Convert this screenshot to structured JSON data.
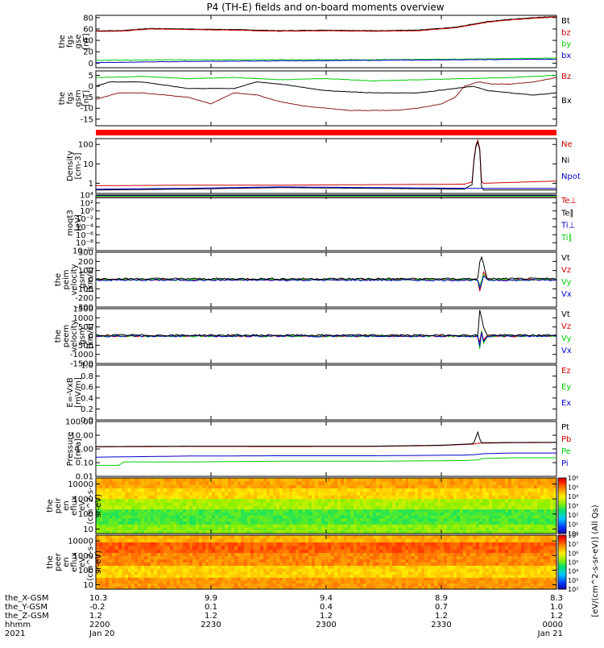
{
  "title": "P4 (TH-E) fields and on-board moments overview",
  "chart_data": [
    {
      "type": "line",
      "ylabel": [
        "the",
        "fgs",
        "gse",
        "[nT]"
      ],
      "ticks": [
        "80",
        "60",
        "40",
        "20",
        "0"
      ],
      "ylim": [
        -8,
        84
      ],
      "legend": [
        {
          "label": "Bt",
          "color": "#000000"
        },
        {
          "label": "bz",
          "color": "#cc0000"
        },
        {
          "label": "by",
          "color": "#00cc00"
        },
        {
          "label": "bx",
          "color": "#0000cc"
        }
      ],
      "series": [
        {
          "name": "Bt",
          "color": "#000000",
          "x": [
            0,
            0.05,
            0.12,
            0.2,
            0.3,
            0.4,
            0.5,
            0.6,
            0.7,
            0.78,
            0.85,
            0.9,
            0.95,
            1
          ],
          "values": [
            57,
            57,
            61,
            60,
            59,
            57,
            58,
            57,
            58,
            63,
            73,
            77,
            80,
            82
          ]
        },
        {
          "name": "bz",
          "color": "#cc0000",
          "x": [
            0,
            0.05,
            0.12,
            0.2,
            0.3,
            0.4,
            0.5,
            0.6,
            0.7,
            0.78,
            0.85,
            0.9,
            0.95,
            1
          ],
          "values": [
            56,
            56,
            60,
            59,
            58,
            56,
            57,
            56,
            57,
            62,
            72,
            76,
            79,
            81
          ]
        },
        {
          "name": "by",
          "color": "#00cc00",
          "x": [
            0,
            0.2,
            0.4,
            0.6,
            0.8,
            1
          ],
          "values": [
            5,
            6,
            6,
            6,
            7,
            9
          ]
        },
        {
          "name": "bx",
          "color": "#0000cc",
          "x": [
            0,
            0.2,
            0.4,
            0.6,
            0.8,
            1
          ],
          "values": [
            1,
            3,
            4,
            5,
            6,
            7
          ]
        }
      ]
    },
    {
      "type": "line",
      "ylabel": [
        "the",
        "fgs",
        "gsm",
        "[nT]"
      ],
      "ticks": [
        "5",
        "0",
        "-5",
        "-10",
        "-15"
      ],
      "ylim": [
        -18,
        7
      ],
      "legend": [
        {
          "label": "Bz",
          "color": "#cc0000"
        },
        {
          "label": "Bx",
          "color": "#000000"
        }
      ],
      "series": [
        {
          "name": "By",
          "color": "#00cc00",
          "x": [
            0,
            0.1,
            0.2,
            0.3,
            0.4,
            0.5,
            0.6,
            0.7,
            0.8,
            0.9,
            1
          ],
          "values": [
            4,
            4.5,
            3.5,
            4,
            3,
            3.5,
            2.5,
            3,
            3.5,
            4,
            5
          ]
        },
        {
          "name": "Bx",
          "color": "#000000",
          "x": [
            0,
            0.03,
            0.1,
            0.2,
            0.3,
            0.35,
            0.4,
            0.5,
            0.6,
            0.7,
            0.78,
            0.82,
            0.85,
            0.9,
            0.95,
            1
          ],
          "values": [
            0,
            2,
            2,
            -1,
            -1,
            2,
            1,
            -2,
            -3,
            -3,
            -1,
            0,
            -2,
            -3,
            -4,
            -3
          ]
        },
        {
          "name": "Bz",
          "color": "#8b1a1a",
          "x": [
            0,
            0.05,
            0.1,
            0.2,
            0.25,
            0.3,
            0.35,
            0.4,
            0.45,
            0.5,
            0.55,
            0.6,
            0.65,
            0.7,
            0.75,
            0.78,
            0.8,
            0.83,
            0.86,
            0.9,
            0.95,
            1
          ],
          "values": [
            -6,
            -3,
            -3,
            -5,
            -8,
            -3,
            -4,
            -7,
            -9,
            -10,
            -11,
            -11,
            -11,
            -10,
            -8,
            -5,
            0,
            2,
            1,
            1,
            2,
            4
          ]
        }
      ]
    },
    {
      "type": "line",
      "ylabel": [
        "Density",
        "[cm-3]"
      ],
      "ticks": [
        "100",
        "10",
        "1"
      ],
      "yscale": "log",
      "ylim": [
        0.3,
        200
      ],
      "legend": [
        {
          "label": "Ne",
          "color": "#cc0000"
        },
        {
          "label": "Ni",
          "color": "#000000"
        },
        {
          "label": "Npot",
          "color": "#0000cc"
        }
      ],
      "series": [
        {
          "name": "Ne",
          "color": "#cc0000",
          "x": [
            0,
            0.2,
            0.4,
            0.6,
            0.8,
            0.82,
            0.83,
            0.835,
            0.84,
            0.9,
            1
          ],
          "values": [
            0.75,
            0.8,
            0.8,
            0.85,
            0.9,
            1.2,
            180,
            1.5,
            1.0,
            1.1,
            1.3
          ]
        },
        {
          "name": "Ni",
          "color": "#000000",
          "x": [
            0,
            0.2,
            0.4,
            0.6,
            0.8,
            0.82,
            0.83,
            0.835,
            0.84,
            0.9,
            1
          ],
          "values": [
            0.45,
            0.5,
            0.6,
            0.55,
            0.5,
            0.9,
            150,
            0.8,
            0.45,
            0.45,
            0.45
          ]
        },
        {
          "name": "Npot",
          "color": "#0000cc",
          "x": [
            0,
            0.2,
            0.4,
            0.6,
            0.8,
            1
          ],
          "values": [
            0.5,
            0.55,
            0.65,
            0.6,
            0.55,
            0.55
          ]
        }
      ]
    },
    {
      "type": "line",
      "ylabel": [
        "moqt3",
        "[eV]"
      ],
      "ticks": [
        "10⁴",
        "10²",
        "10⁰",
        "10⁻²",
        "10⁻⁴",
        "10⁻⁶",
        "10⁻⁸",
        "10⁻¹⁰"
      ],
      "yscale": "log",
      "ylim": [
        -10,
        4
      ],
      "legend": [
        {
          "label": "Te⊥",
          "color": "#cc0000"
        },
        {
          "label": "Te∥",
          "color": "#000000"
        },
        {
          "label": "Ti⊥",
          "color": "#0000cc"
        },
        {
          "label": "Ti∥",
          "color": "#00cc00"
        }
      ],
      "series": [
        {
          "name": "Te⊥",
          "color": "#cc0000",
          "x": [
            0,
            1
          ],
          "values": [
            3.4,
            3.4
          ]
        },
        {
          "name": "Te∥",
          "color": "#000000",
          "x": [
            0,
            1
          ],
          "values": [
            3.3,
            3.3
          ]
        },
        {
          "name": "Ti⊥",
          "color": "#0000cc",
          "x": [
            0,
            1
          ],
          "values": [
            3.9,
            3.9
          ]
        },
        {
          "name": "Ti∥",
          "color": "#00cc00",
          "x": [
            0,
            1
          ],
          "values": [
            3.7,
            3.7
          ]
        }
      ]
    },
    {
      "type": "line",
      "ylabel": [
        "the",
        "peim",
        "velocity",
        "gsm",
        "[km/s]"
      ],
      "ticks": [
        "300",
        "200",
        "100",
        "0",
        "-100",
        "-200",
        "-300"
      ],
      "ylim": [
        -300,
        300
      ],
      "legend": [
        {
          "label": "Vt",
          "color": "#000000"
        },
        {
          "label": "Vz",
          "color": "#cc0000"
        },
        {
          "label": "Vy",
          "color": "#00cc00"
        },
        {
          "label": "Vx",
          "color": "#0000cc"
        }
      ],
      "series": [
        {
          "name": "Vz",
          "color": "#cc0000",
          "x": [
            0,
            0.5,
            0.83,
            0.835,
            0.84,
            0.85,
            1
          ],
          "values": [
            0,
            0,
            0,
            -200,
            100,
            0,
            0
          ]
        },
        {
          "name": "Vy",
          "color": "#00cc00",
          "x": [
            0,
            0.5,
            0.83,
            0.835,
            0.84,
            0.85,
            1
          ],
          "values": [
            0,
            0,
            0,
            -100,
            60,
            0,
            0
          ]
        },
        {
          "name": "Vx",
          "color": "#0000cc",
          "x": [
            0,
            0.5,
            0.83,
            0.835,
            0.84,
            0.85,
            1
          ],
          "values": [
            -5,
            -5,
            -5,
            -150,
            50,
            -5,
            -5
          ]
        },
        {
          "name": "Vt",
          "color": "#000000",
          "x": [
            0,
            0.5,
            0.83,
            0.835,
            0.84,
            0.85,
            1
          ],
          "values": [
            10,
            10,
            10,
            280,
            200,
            10,
            10
          ]
        }
      ]
    },
    {
      "type": "line",
      "ylabel": [
        "the",
        "peem",
        "velocity",
        "gsm",
        "[km/s]"
      ],
      "ticks": [
        "1500",
        "1000",
        "500",
        "0",
        "-500",
        "-1000",
        "-1500"
      ],
      "ylim": [
        -1500,
        1500
      ],
      "legend": [
        {
          "label": "Vt",
          "color": "#000000"
        },
        {
          "label": "Vz",
          "color": "#cc0000"
        },
        {
          "label": "Vy",
          "color": "#00cc00"
        },
        {
          "label": "Vx",
          "color": "#0000cc"
        }
      ],
      "series": [
        {
          "name": "Vz",
          "color": "#cc0000",
          "x": [
            0,
            0.5,
            0.83,
            0.832,
            0.836,
            0.84,
            0.85,
            1
          ],
          "values": [
            0,
            0,
            0,
            -800,
            600,
            -300,
            0,
            0
          ]
        },
        {
          "name": "Vy",
          "color": "#00cc00",
          "x": [
            0,
            0.5,
            0.83,
            0.832,
            0.836,
            0.84,
            0.85,
            1
          ],
          "values": [
            0,
            0,
            0,
            -1400,
            800,
            -500,
            0,
            0
          ]
        },
        {
          "name": "Vx",
          "color": "#0000cc",
          "x": [
            0,
            0.5,
            0.83,
            0.832,
            0.836,
            0.84,
            0.85,
            1
          ],
          "values": [
            0,
            0,
            0,
            -1000,
            500,
            -400,
            0,
            0
          ]
        },
        {
          "name": "Vt",
          "color": "#000000",
          "x": [
            0,
            0.5,
            0.83,
            0.832,
            0.836,
            0.84,
            0.85,
            1
          ],
          "values": [
            50,
            50,
            50,
            1500,
            1200,
            600,
            50,
            50
          ]
        }
      ]
    },
    {
      "type": "line",
      "ylabel": [
        "E=-VxB",
        "[mV/m]"
      ],
      "ticks": [
        "1.0",
        "0.8",
        "0.6",
        "0.4",
        "0.2",
        "0.0"
      ],
      "ylim": [
        0,
        1
      ],
      "legend": [
        {
          "label": "Ez",
          "color": "#cc0000"
        },
        {
          "label": "Ey",
          "color": "#00cc00"
        },
        {
          "label": "Ex",
          "color": "#0000cc"
        }
      ],
      "series": []
    },
    {
      "type": "line",
      "ylabel": [
        "Pressure",
        "[nPa]"
      ],
      "ticks": [
        "100.00",
        "10.00",
        "1.00",
        "0.10",
        "0.01"
      ],
      "yscale": "log",
      "ylim": [
        -2,
        2
      ],
      "legend": [
        {
          "label": "Pt",
          "color": "#000000"
        },
        {
          "label": "Pb",
          "color": "#cc0000"
        },
        {
          "label": "Pe",
          "color": "#00cc00"
        },
        {
          "label": "Pi",
          "color": "#0000cc"
        }
      ],
      "series": [
        {
          "name": "Pb",
          "color": "#cc0000",
          "x": [
            0,
            0.2,
            0.4,
            0.6,
            0.75,
            0.82,
            0.83,
            0.9,
            1
          ],
          "values": [
            0.15,
            0.18,
            0.17,
            0.18,
            0.25,
            0.35,
            0.42,
            0.45,
            0.47
          ]
        },
        {
          "name": "Pt",
          "color": "#000000",
          "x": [
            0,
            0.2,
            0.4,
            0.6,
            0.75,
            0.82,
            0.83,
            0.835,
            0.84,
            0.9,
            1
          ],
          "values": [
            0.17,
            0.2,
            0.2,
            0.2,
            0.27,
            0.38,
            1.3,
            0.45,
            0.45,
            0.47,
            0.48
          ]
        },
        {
          "name": "Pi",
          "color": "#0000cc",
          "x": [
            0,
            0.2,
            0.4,
            0.6,
            0.8,
            0.83,
            0.84,
            0.9,
            1
          ],
          "values": [
            -0.6,
            -0.52,
            -0.5,
            -0.5,
            -0.45,
            -0.4,
            -0.35,
            -0.3,
            -0.3
          ]
        },
        {
          "name": "Pe",
          "color": "#00cc00",
          "x": [
            0,
            0.05,
            0.06,
            0.2,
            0.4,
            0.6,
            0.8,
            0.83,
            0.84,
            0.9,
            1
          ],
          "values": [
            -1.2,
            -1.2,
            -0.95,
            -0.95,
            -0.9,
            -0.9,
            -0.85,
            -0.8,
            -0.7,
            -0.65,
            -0.65
          ]
        }
      ]
    },
    {
      "type": "heatmap",
      "ylabel": [
        "the",
        "peir",
        "en",
        "eflux",
        "eV",
        "(cm^2-s-",
        "sr-eV)"
      ],
      "ticks": [
        "10000",
        "1000",
        "100",
        "10"
      ],
      "yscale": "log",
      "ylim": [
        5,
        25000
      ],
      "colorbar": {
        "ticks": [
          "10⁶",
          "10⁵",
          "10⁴",
          "10³",
          "10²",
          "10¹",
          "10⁰"
        ],
        "min_exp": 0,
        "max_exp": 6
      },
      "bands": [
        {
          "e_hi": 25000,
          "e_lo": 5000,
          "level": 4.7
        },
        {
          "e_hi": 5000,
          "e_lo": 1000,
          "level": 4.3
        },
        {
          "e_hi": 1000,
          "e_lo": 200,
          "level": 3.5
        },
        {
          "e_hi": 200,
          "e_lo": 20,
          "level": 2.9
        },
        {
          "e_hi": 20,
          "e_lo": 5,
          "level": 3.3
        }
      ]
    },
    {
      "type": "heatmap",
      "ylabel": [
        "the",
        "peer",
        "en",
        "eflux",
        "eV",
        "(cm^2-s-",
        "sr-eV)"
      ],
      "ticks": [
        "10000",
        "1000",
        "100",
        "10"
      ],
      "yscale": "log",
      "ylim": [
        5,
        25000
      ],
      "colorbar": {
        "ticks": [
          "10⁸",
          "10⁷",
          "10⁶",
          "10⁵",
          "10⁴",
          "10³",
          "10²"
        ],
        "min_exp": 2,
        "max_exp": 8
      },
      "colorbar_label": "[eV/(cm^2-s-sr-eV)] (All Qs)",
      "bands": [
        {
          "e_hi": 25000,
          "e_lo": 8000,
          "level": 6.6
        },
        {
          "e_hi": 8000,
          "e_lo": 1500,
          "level": 7.2
        },
        {
          "e_hi": 1500,
          "e_lo": 200,
          "level": 6.9
        },
        {
          "e_hi": 200,
          "e_lo": 30,
          "level": 6.3
        },
        {
          "e_hi": 30,
          "e_lo": 5,
          "level": 6.8
        }
      ]
    }
  ],
  "status_bar": {
    "label": "",
    "color": "#ff0000"
  },
  "ephemeris": {
    "labels": [
      "the_X-GSM",
      "the_Y-GSM",
      "the_Z-GSM",
      "hhmm",
      "2021"
    ],
    "columns": [
      {
        "x": 0.0,
        "values": [
          "10.3",
          "-0.2",
          "1.2",
          "2200",
          "Jan 20"
        ]
      },
      {
        "x": 0.25,
        "values": [
          "9.9",
          "0.1",
          "1.2",
          "2230",
          ""
        ]
      },
      {
        "x": 0.5,
        "values": [
          "9.4",
          "0.4",
          "1.2",
          "2300",
          ""
        ]
      },
      {
        "x": 0.75,
        "values": [
          "8.9",
          "0.7",
          "1.2",
          "2330",
          ""
        ]
      },
      {
        "x": 1.0,
        "values": [
          "8.3",
          "1.0",
          "1.2",
          "0000",
          "Jan 21"
        ]
      }
    ]
  }
}
